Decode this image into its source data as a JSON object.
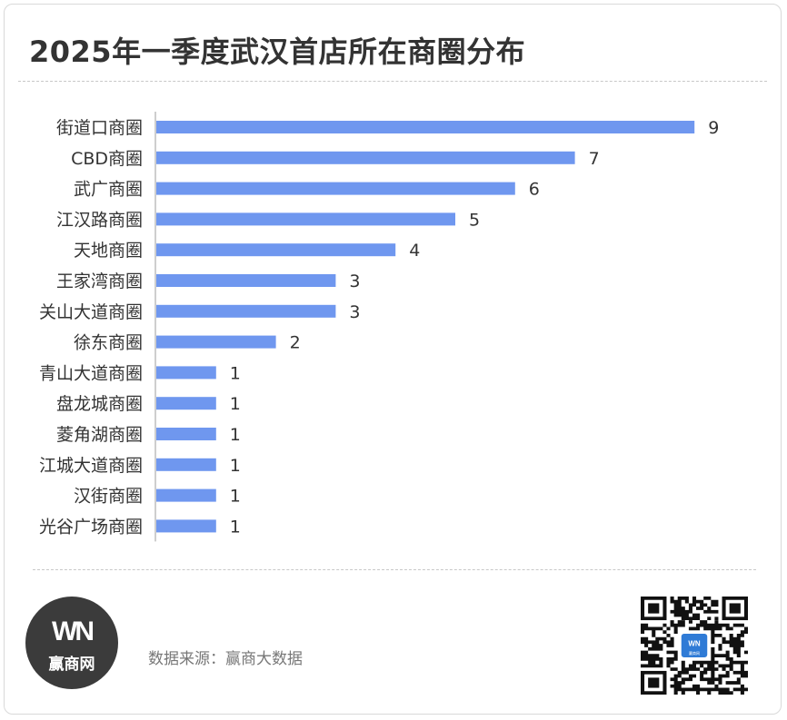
{
  "header": {
    "title": "2025年一季度武汉首店所在商圈分布"
  },
  "chart_data": {
    "type": "bar",
    "orientation": "horizontal",
    "categories": [
      "街道口商圈",
      "CBD商圈",
      "武广商圈",
      "江汉路商圈",
      "天地商圈",
      "王家湾商圈",
      "关山大道商圈",
      "徐东商圈",
      "青山大道商圈",
      "盘龙城商圈",
      "菱角湖商圈",
      "江城大道商圈",
      "汉街商圈",
      "光谷广场商圈"
    ],
    "values": [
      9,
      7,
      6,
      5,
      4,
      3,
      3,
      2,
      1,
      1,
      1,
      1,
      1,
      1
    ],
    "xlim": [
      0,
      9
    ],
    "grid": false,
    "data_labels": true,
    "bar_color": "#6f97ef"
  },
  "footer": {
    "logo_mark": "WN",
    "logo_text": "赢商网",
    "source": "数据来源：赢商大数据",
    "qr_badge": "赢商网"
  },
  "colors": {
    "text": "#333333",
    "axis": "#bdbdbd",
    "bar": "#6f97ef",
    "logo_bg": "#3b3b3b",
    "qr_center": "#2f7bd6"
  }
}
